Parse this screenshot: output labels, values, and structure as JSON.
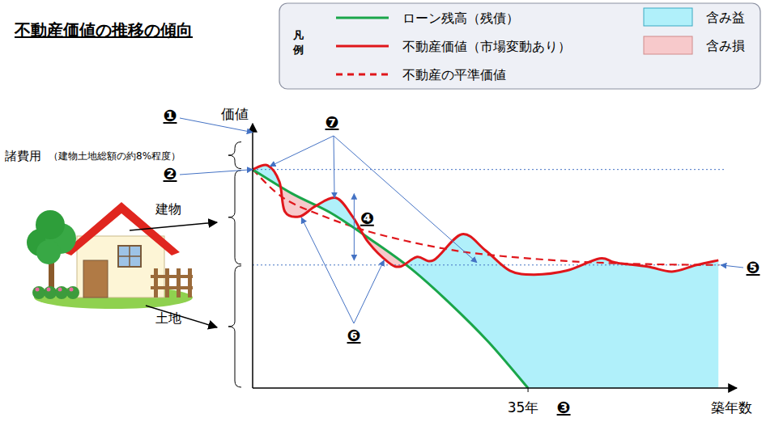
{
  "chart_data": {
    "type": "line",
    "title": "不動産価値の推移の傾向",
    "legend_title": "凡例",
    "x_label": "築年数",
    "y_label": "価値",
    "xlim": [
      0,
      60
    ],
    "ylim": [
      0,
      118
    ],
    "xticks": [
      {
        "value": 35,
        "label": "35年"
      }
    ],
    "yticks": [],
    "tick_labels": "x",
    "grid": false,
    "legend": "top",
    "series": [
      {
        "name": "ローン残高（残債）",
        "color": "#1aa64a",
        "line_style": "solid",
        "x": [
          0,
          5,
          10,
          15,
          20,
          25,
          30,
          35
        ],
        "values": [
          100,
          89,
          80,
          68,
          55,
          39,
          21,
          0
        ]
      },
      {
        "name": "不動産価値（市場変動あり）",
        "color": "#e0161b",
        "line_style": "solid",
        "x": [
          0,
          1.9,
          3.4,
          4.1,
          6,
          8,
          10.6,
          12.7,
          14.7,
          17.3,
          18.8,
          20.9,
          23,
          26.6,
          29.6,
          32.7,
          35.8,
          39.9,
          44.1,
          46.1,
          50.2,
          53.3,
          56.4,
          59.2
        ],
        "values": [
          100,
          101.9,
          94.4,
          80.7,
          78.5,
          83.3,
          87,
          78.5,
          66.7,
          57.4,
          55.6,
          60,
          58.5,
          70.4,
          63,
          53.7,
          51.9,
          53.7,
          59.3,
          57.4,
          55.6,
          53.3,
          56.3,
          58.5
        ]
      },
      {
        "name": "不動産の平準価値",
        "color": "#e0161b",
        "line_style": "dashed",
        "x": [
          0,
          3.9,
          9.1,
          14.2,
          19.4,
          24.5,
          29.6,
          39.9,
          50.2,
          59.2
        ],
        "values": [
          100,
          87,
          78.5,
          72.2,
          67.4,
          63.7,
          61.1,
          58.1,
          56.7,
          56.3
        ]
      }
    ],
    "areas": [
      {
        "name": "含み益",
        "color": "#b0f0fa"
      },
      {
        "name": "含み損",
        "color": "#f7c9cb"
      }
    ],
    "hlines": [
      100,
      56.3
    ],
    "brackets": [
      {
        "label": "諸費用",
        "note": "（建物土地総額の約8%程度）",
        "from": 100,
        "to": 113
      },
      {
        "label": "建物",
        "from": 56.3,
        "to": 100
      },
      {
        "label": "土地",
        "from": 0,
        "to": 56.3
      }
    ],
    "annotations": [
      {
        "text": "❶",
        "targets": [
          [
            0,
            117
          ]
        ]
      },
      {
        "text": "❷",
        "targets": [
          [
            0,
            100
          ]
        ]
      },
      {
        "text": "❸",
        "x": 35
      },
      {
        "text": "❹",
        "x": 12.9,
        "from": 88.9,
        "to": 58.5
      },
      {
        "text": "❺",
        "targets": [
          [
            59.5,
            56.3
          ]
        ]
      },
      {
        "text": "❻",
        "targets": [
          [
            6.2,
            78
          ],
          [
            16.7,
            58.5
          ]
        ]
      },
      {
        "text": "❼",
        "targets": [
          [
            2.2,
            101.5
          ],
          [
            10.4,
            87
          ],
          [
            28.5,
            57.4
          ]
        ]
      }
    ]
  }
}
